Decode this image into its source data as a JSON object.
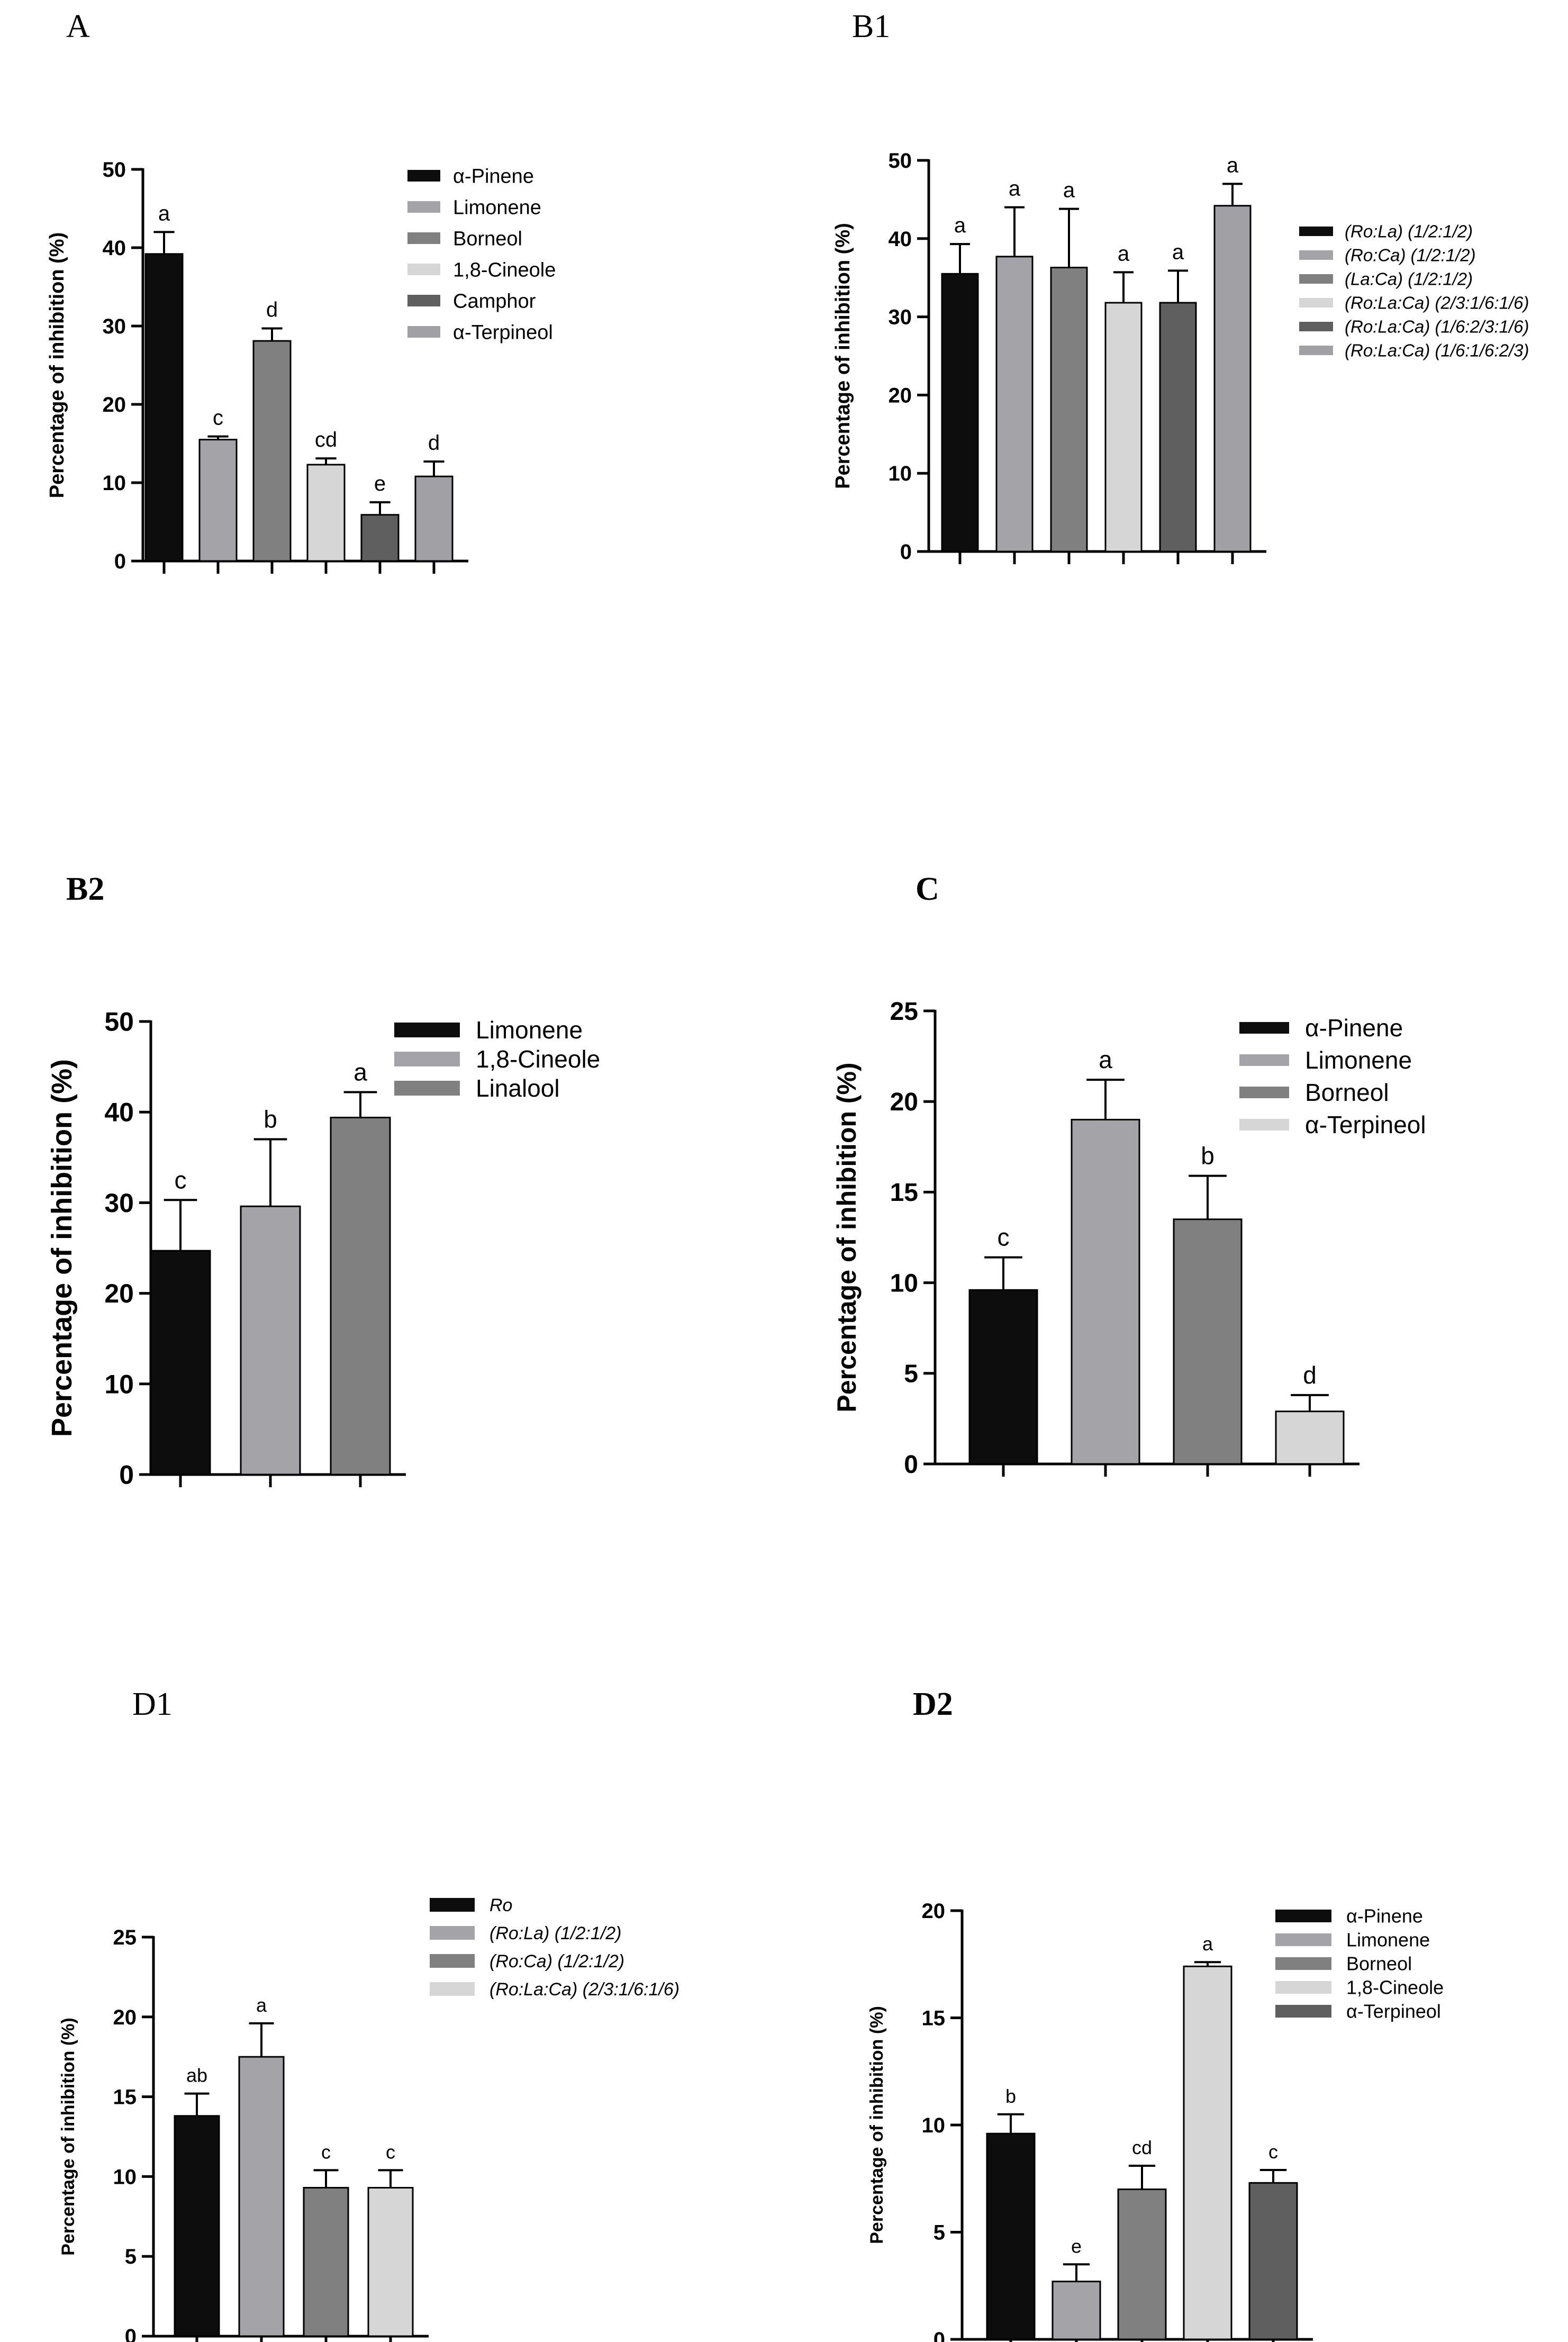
{
  "chart_data": [
    {
      "panel": "A",
      "type": "bar",
      "title": "",
      "xlabel": "",
      "ylabel": "Percentage of  inhibition (%)",
      "ylim": [
        0,
        50
      ],
      "yticks": [
        "0",
        "10",
        "20",
        "30",
        "40",
        "50"
      ],
      "categories": [
        "α-Pinene",
        "Limonene",
        "Borneol",
        "1,8-Cineole",
        "Camphor",
        "α-Terpineol"
      ],
      "values": [
        39.2,
        15.5,
        28.1,
        12.3,
        5.9,
        10.8
      ],
      "errors": [
        2.8,
        0.4,
        1.6,
        0.8,
        1.6,
        1.9
      ],
      "letters": [
        "a",
        "c",
        "d",
        "cd",
        "e",
        "d"
      ],
      "colors": [
        "#0d0d0d",
        "#a3a3a8",
        "#808080",
        "#d6d6d6",
        "#5f5f5f",
        "#a0a0a5"
      ],
      "legend_italic": false
    },
    {
      "panel": "B1",
      "type": "bar",
      "title": "",
      "xlabel": "",
      "ylabel": "Percentage of  inhibition (%)",
      "ylim": [
        0,
        50
      ],
      "yticks": [
        "0",
        "10",
        "20",
        "30",
        "40",
        "50"
      ],
      "categories": [
        "(Ro:La) (1/2:1/2)",
        "(Ro:Ca) (1/2:1/2)",
        "(La:Ca) (1/2:1/2)",
        "(Ro:La:Ca) (2/3:1/6:1/6)",
        "(Ro:La:Ca) (1/6:2/3:1/6)",
        "(Ro:La:Ca) (1/6:1/6:2/3)"
      ],
      "values": [
        35.5,
        37.7,
        36.3,
        31.8,
        31.8,
        44.2
      ],
      "errors": [
        3.8,
        6.3,
        7.5,
        3.9,
        4.1,
        2.8
      ],
      "letters": [
        "a",
        "a",
        "a",
        "a",
        "a",
        "a"
      ],
      "colors": [
        "#0d0d0d",
        "#a3a3a8",
        "#808080",
        "#d6d6d6",
        "#5f5f5f",
        "#a0a0a5"
      ],
      "legend_italic": true
    },
    {
      "panel": "B2",
      "type": "bar",
      "title": "",
      "xlabel": "",
      "ylabel": "Percentage of  inhibition (%)",
      "ylim": [
        0,
        50
      ],
      "yticks": [
        "0",
        "10",
        "20",
        "30",
        "40",
        "50"
      ],
      "categories": [
        "Limonene",
        "1,8-Cineole",
        "Linalool"
      ],
      "values": [
        24.7,
        29.6,
        39.4
      ],
      "errors": [
        5.6,
        7.4,
        2.8
      ],
      "letters": [
        "c",
        "b",
        "a"
      ],
      "colors": [
        "#0d0d0d",
        "#a3a3a8",
        "#808080"
      ],
      "legend_italic": false
    },
    {
      "panel": "C",
      "type": "bar",
      "title": "",
      "xlabel": "",
      "ylabel": "Percentage of  inhibition (%)",
      "ylim": [
        0,
        25
      ],
      "yticks": [
        "0",
        "5",
        "10",
        "15",
        "20",
        "25"
      ],
      "categories": [
        "α-Pinene",
        "Limonene",
        "Borneol",
        "α-Terpineol"
      ],
      "values": [
        9.6,
        19.0,
        13.5,
        2.9
      ],
      "errors": [
        1.8,
        2.2,
        2.4,
        0.9
      ],
      "letters": [
        "c",
        "a",
        "b",
        "d"
      ],
      "colors": [
        "#0d0d0d",
        "#a3a3a8",
        "#808080",
        "#d6d6d6"
      ],
      "legend_italic": false
    },
    {
      "panel": "D1",
      "type": "bar",
      "title": "",
      "xlabel": "",
      "ylabel": "Percentage of  inhibition (%)",
      "ylim": [
        0,
        25
      ],
      "yticks": [
        "0",
        "5",
        "10",
        "15",
        "20",
        "25"
      ],
      "categories": [
        "Ro",
        "(Ro:La) (1/2:1/2)",
        "(Ro:Ca) (1/2:1/2)",
        "(Ro:La:Ca) (2/3:1/6:1/6)"
      ],
      "values": [
        13.8,
        17.5,
        9.3,
        9.3
      ],
      "errors": [
        1.4,
        2.1,
        1.1,
        1.1
      ],
      "letters": [
        "ab",
        "a",
        "c",
        "c"
      ],
      "colors": [
        "#0d0d0d",
        "#a3a3a8",
        "#808080",
        "#d6d6d6"
      ],
      "legend_italic": true
    },
    {
      "panel": "D2",
      "type": "bar",
      "title": "",
      "xlabel": "",
      "ylabel": "Percentage of  inhibition (%)",
      "ylim": [
        0,
        20
      ],
      "yticks": [
        "0",
        "5",
        "10",
        "15",
        "20"
      ],
      "categories": [
        "α-Pinene",
        "Limonene",
        "Borneol",
        "1,8-Cineole",
        "α-Terpineol"
      ],
      "values": [
        9.6,
        2.7,
        7.0,
        17.4,
        7.3
      ],
      "errors": [
        0.9,
        0.8,
        1.1,
        0.2,
        0.6
      ],
      "letters": [
        "b",
        "e",
        "cd",
        "a",
        "c"
      ],
      "colors": [
        "#0d0d0d",
        "#a3a3a8",
        "#808080",
        "#d6d6d6",
        "#5f5f5f"
      ],
      "legend_italic": false
    }
  ]
}
